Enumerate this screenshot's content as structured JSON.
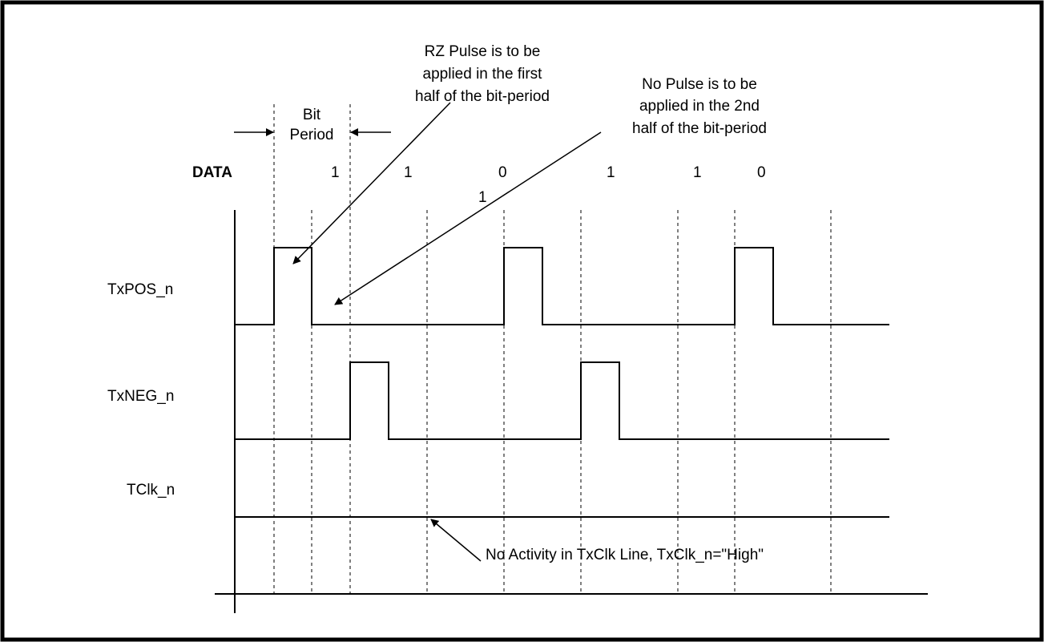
{
  "colors": {
    "line": "#000000",
    "background": "#ffffff"
  },
  "annotations": {
    "bit_period_top": "Bit",
    "bit_period_bottom": "Period",
    "rz_pulse": [
      "RZ Pulse is to be",
      "applied in the first",
      "half of the bit-period"
    ],
    "no_pulse": [
      "No Pulse is to be",
      "applied in the 2nd",
      "half of the bit-period"
    ],
    "no_activity": "No Activity in TxClk Line, TxClk_n=\"High\""
  },
  "data_row": {
    "label": "DATA",
    "bits": [
      "1",
      "1",
      "0",
      "1",
      "1",
      "0"
    ],
    "stray_bit": "1"
  },
  "signals": [
    {
      "name": "TxPOS_n",
      "pulse_slots": [
        0,
        6,
        12
      ]
    },
    {
      "name": "TxNEG_n",
      "pulse_slots": [
        2,
        9
      ]
    },
    {
      "name": "TClk_n",
      "pulse_slots": []
    }
  ]
}
